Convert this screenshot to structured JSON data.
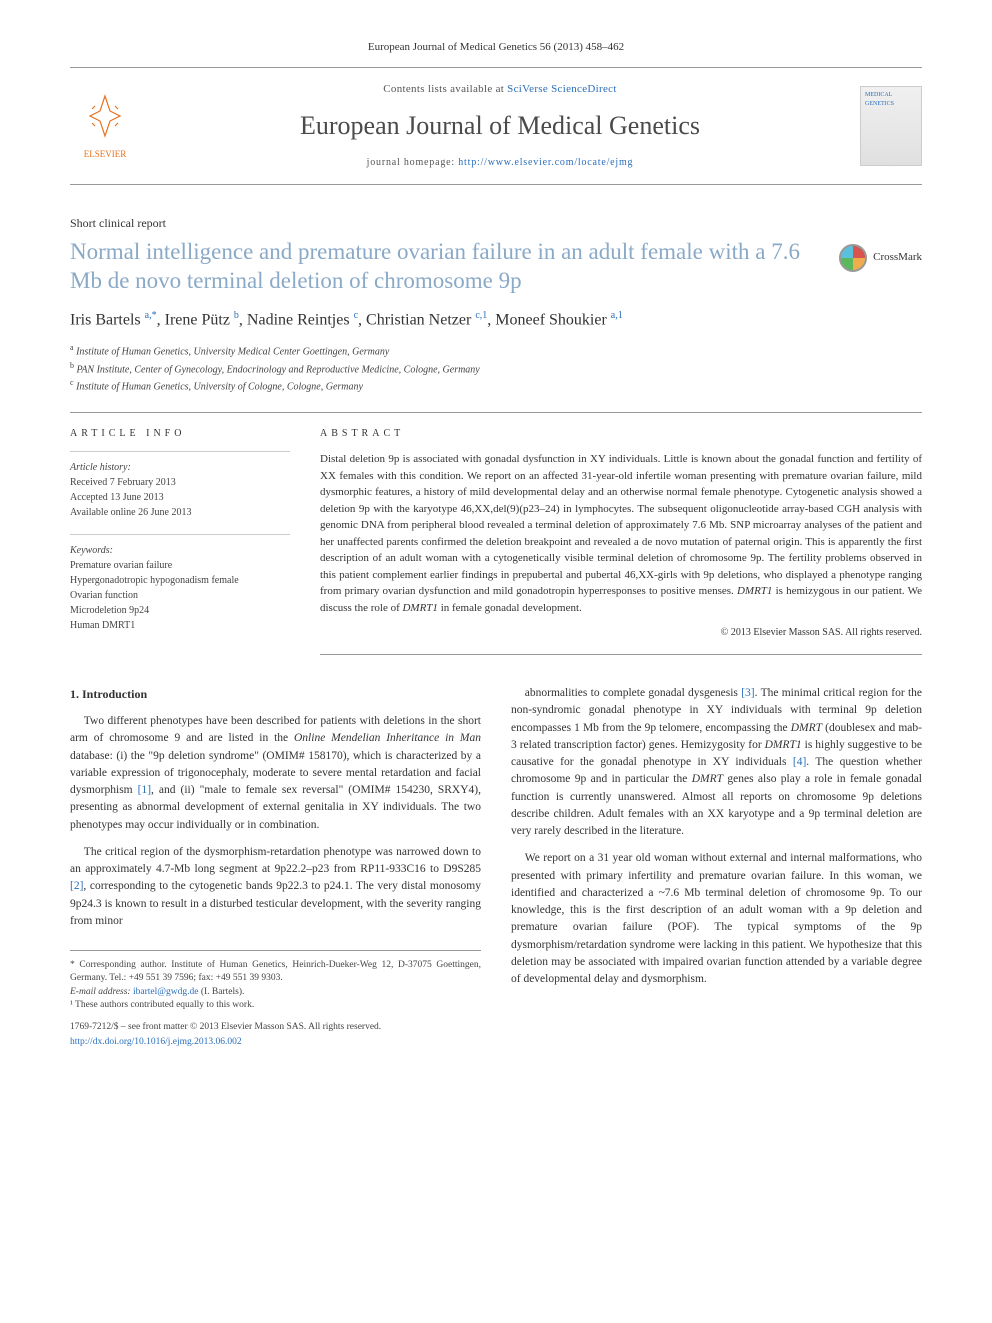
{
  "journal_ref": "European Journal of Medical Genetics 56 (2013) 458–462",
  "header": {
    "elsevier_label": "ELSEVIER",
    "contents_prefix": "Contents lists available at ",
    "contents_link": "SciVerse ScienceDirect",
    "journal_name": "European Journal of Medical Genetics",
    "homepage_prefix": "journal homepage: ",
    "homepage_url": "http://www.elsevier.com/locate/ejmg",
    "cover_text": "MEDICAL GENETICS"
  },
  "article_type": "Short clinical report",
  "title": "Normal intelligence and premature ovarian failure in an adult female with a 7.6 Mb de novo terminal deletion of chromosome 9p",
  "crossmark_label": "CrossMark",
  "authors_html": "Iris Bartels <sup>a,*</sup>, Irene Pütz <sup>b</sup>, Nadine Reintjes <sup>c</sup>, Christian Netzer <sup>c,1</sup>, Moneef Shoukier <sup>a,1</sup>",
  "affiliations": {
    "a": "Institute of Human Genetics, University Medical Center Goettingen, Germany",
    "b": "PAN Institute, Center of Gynecology, Endocrinology and Reproductive Medicine, Cologne, Germany",
    "c": "Institute of Human Genetics, University of Cologne, Cologne, Germany"
  },
  "article_info_label": "ARTICLE INFO",
  "abstract_label": "ABSTRACT",
  "history": {
    "heading": "Article history:",
    "received": "Received 7 February 2013",
    "accepted": "Accepted 13 June 2013",
    "online": "Available online 26 June 2013"
  },
  "keywords": {
    "heading": "Keywords:",
    "items": [
      "Premature ovarian failure",
      "Hypergonadotropic hypogonadism female",
      "Ovarian function",
      "Microdeletion 9p24",
      "Human DMRT1"
    ]
  },
  "abstract": "Distal deletion 9p is associated with gonadal dysfunction in XY individuals. Little is known about the gonadal function and fertility of XX females with this condition. We report on an affected 31-year-old infertile woman presenting with premature ovarian failure, mild dysmorphic features, a history of mild developmental delay and an otherwise normal female phenotype. Cytogenetic analysis showed a deletion 9p with the karyotype 46,XX,del(9)(p23–24) in lymphocytes. The subsequent oligonucleotide array-based CGH analysis with genomic DNA from peripheral blood revealed a terminal deletion of approximately 7.6 Mb. SNP microarray analyses of the patient and her unaffected parents confirmed the deletion breakpoint and revealed a de novo mutation of paternal origin. This is apparently the first description of an adult woman with a cytogenetically visible terminal deletion of chromosome 9p. The fertility problems observed in this patient complement earlier findings in prepubertal and pubertal 46,XX-girls with 9p deletions, who displayed a phenotype ranging from primary ovarian dysfunction and mild gonadotropin hyperresponses to positive menses. DMRT1 is hemizygous in our patient. We discuss the role of DMRT1 in female gonadal development.",
  "copyright": "© 2013 Elsevier Masson SAS. All rights reserved.",
  "intro_heading": "1. Introduction",
  "intro_paragraphs": [
    "Two different phenotypes have been described for patients with deletions in the short arm of chromosome 9 and are listed in the Online Mendelian Inheritance in Man database: (i) the \"9p deletion syndrome\" (OMIM# 158170), which is characterized by a variable expression of trigonocephaly, moderate to severe mental retardation and facial dysmorphism [1], and (ii) \"male to female sex reversal\" (OMIM# 154230, SRXY4), presenting as abnormal development of external genitalia in XY individuals. The two phenotypes may occur individually or in combination.",
    "The critical region of the dysmorphism-retardation phenotype was narrowed down to an approximately 4.7-Mb long segment at 9p22.2–p23 from RP11-933C16 to D9S285 [2], corresponding to the cytogenetic bands 9p22.3 to p24.1. The very distal monosomy 9p24.3 is known to result in a disturbed testicular development, with the severity ranging from minor",
    "abnormalities to complete gonadal dysgenesis [3]. The minimal critical region for the non-syndromic gonadal phenotype in XY individuals with terminal 9p deletion encompasses 1 Mb from the 9p telomere, encompassing the DMRT (doublesex and mab-3 related transcription factor) genes. Hemizygosity for DMRT1 is highly suggestive to be causative for the gonadal phenotype in XY individuals [4]. The question whether chromosome 9p and in particular the DMRT genes also play a role in female gonadal function is currently unanswered. Almost all reports on chromosome 9p deletions describe children. Adult females with an XX karyotype and a 9p terminal deletion are very rarely described in the literature.",
    "We report on a 31 year old woman without external and internal malformations, who presented with primary infertility and premature ovarian failure. In this woman, we identified and characterized a ~7.6 Mb terminal deletion of chromosome 9p. To our knowledge, this is the first description of an adult woman with a 9p deletion and premature ovarian failure (POF). The typical symptoms of the 9p dysmorphism/retardation syndrome were lacking in this patient. We hypothesize that this deletion may be associated with impaired ovarian function attended by a variable degree of developmental delay and dysmorphism."
  ],
  "footnotes": {
    "corresponding": "* Corresponding author. Institute of Human Genetics, Heinrich-Dueker-Weg 12, D-37075 Goettingen, Germany. Tel.: +49 551 39 7596; fax: +49 551 39 9303.",
    "email_label": "E-mail address: ",
    "email": "ibartel@gwdg.de",
    "email_attribution": " (I. Bartels).",
    "equal": "¹ These authors contributed equally to this work."
  },
  "doi": {
    "line1": "1769-7212/$ – see front matter © 2013 Elsevier Masson SAS. All rights reserved.",
    "link": "http://dx.doi.org/10.1016/j.ejmg.2013.06.002"
  },
  "colors": {
    "title": "#8aa9c7",
    "link": "#2a6ebb",
    "elsevier": "#e9711c",
    "text": "#333333",
    "border": "#999999"
  }
}
